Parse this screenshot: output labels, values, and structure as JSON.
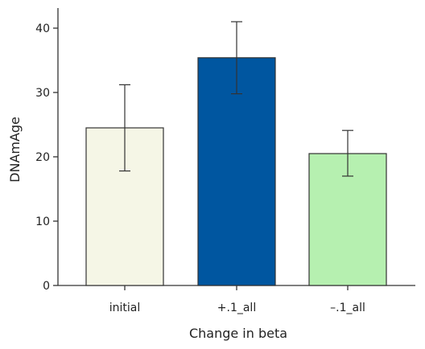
{
  "chart_data": {
    "type": "bar",
    "xlabel": "Change in beta",
    "ylabel": "DNAmAge",
    "ylim": [
      0,
      42
    ],
    "yticks": [
      0,
      10,
      20,
      30,
      40
    ],
    "categories": [
      "initial",
      "+.1_all",
      "–.1_all"
    ],
    "values": [
      24.5,
      35.4,
      20.5
    ],
    "error_low": [
      17.8,
      29.8,
      17.0
    ],
    "error_high": [
      31.2,
      41.0,
      24.1
    ],
    "bar_colors": [
      "#f5f6e6",
      "#0056a0",
      "#b6f0b0"
    ],
    "grid": false,
    "legend": "none"
  }
}
